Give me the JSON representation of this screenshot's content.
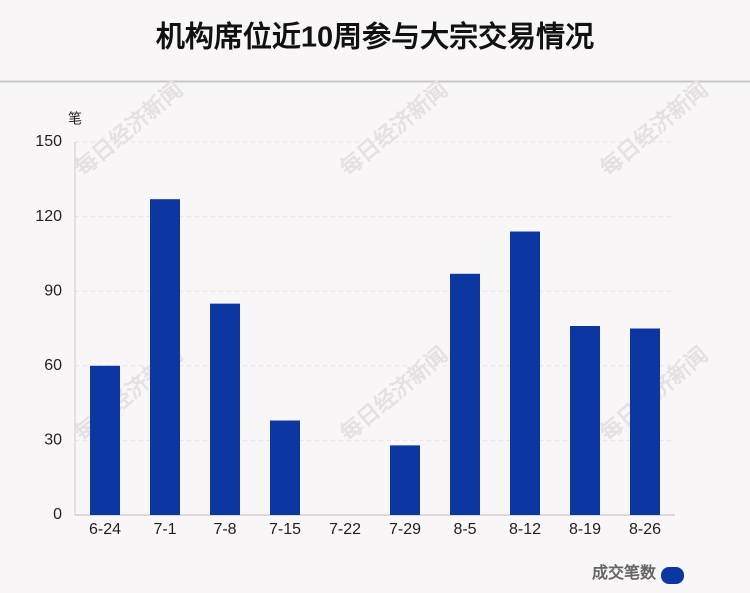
{
  "chart_data": {
    "type": "bar",
    "title": "机构席位近10周参与大宗交易情况",
    "y_axis_label": "笔",
    "watermark": "每日经济新闻",
    "categories": [
      "6-24",
      "7-1",
      "7-8",
      "7-15",
      "7-22",
      "7-29",
      "8-5",
      "8-12",
      "8-19",
      "8-26"
    ],
    "series": [
      {
        "name": "成交笔数",
        "color": "#0c36a0",
        "values": [
          60,
          127,
          85,
          38,
          0,
          28,
          97,
          114,
          76,
          75
        ]
      }
    ],
    "ylim": [
      0,
      150
    ],
    "yticks": [
      0,
      30,
      60,
      90,
      120,
      150
    ],
    "grid": true,
    "legend": "bottom-right"
  }
}
